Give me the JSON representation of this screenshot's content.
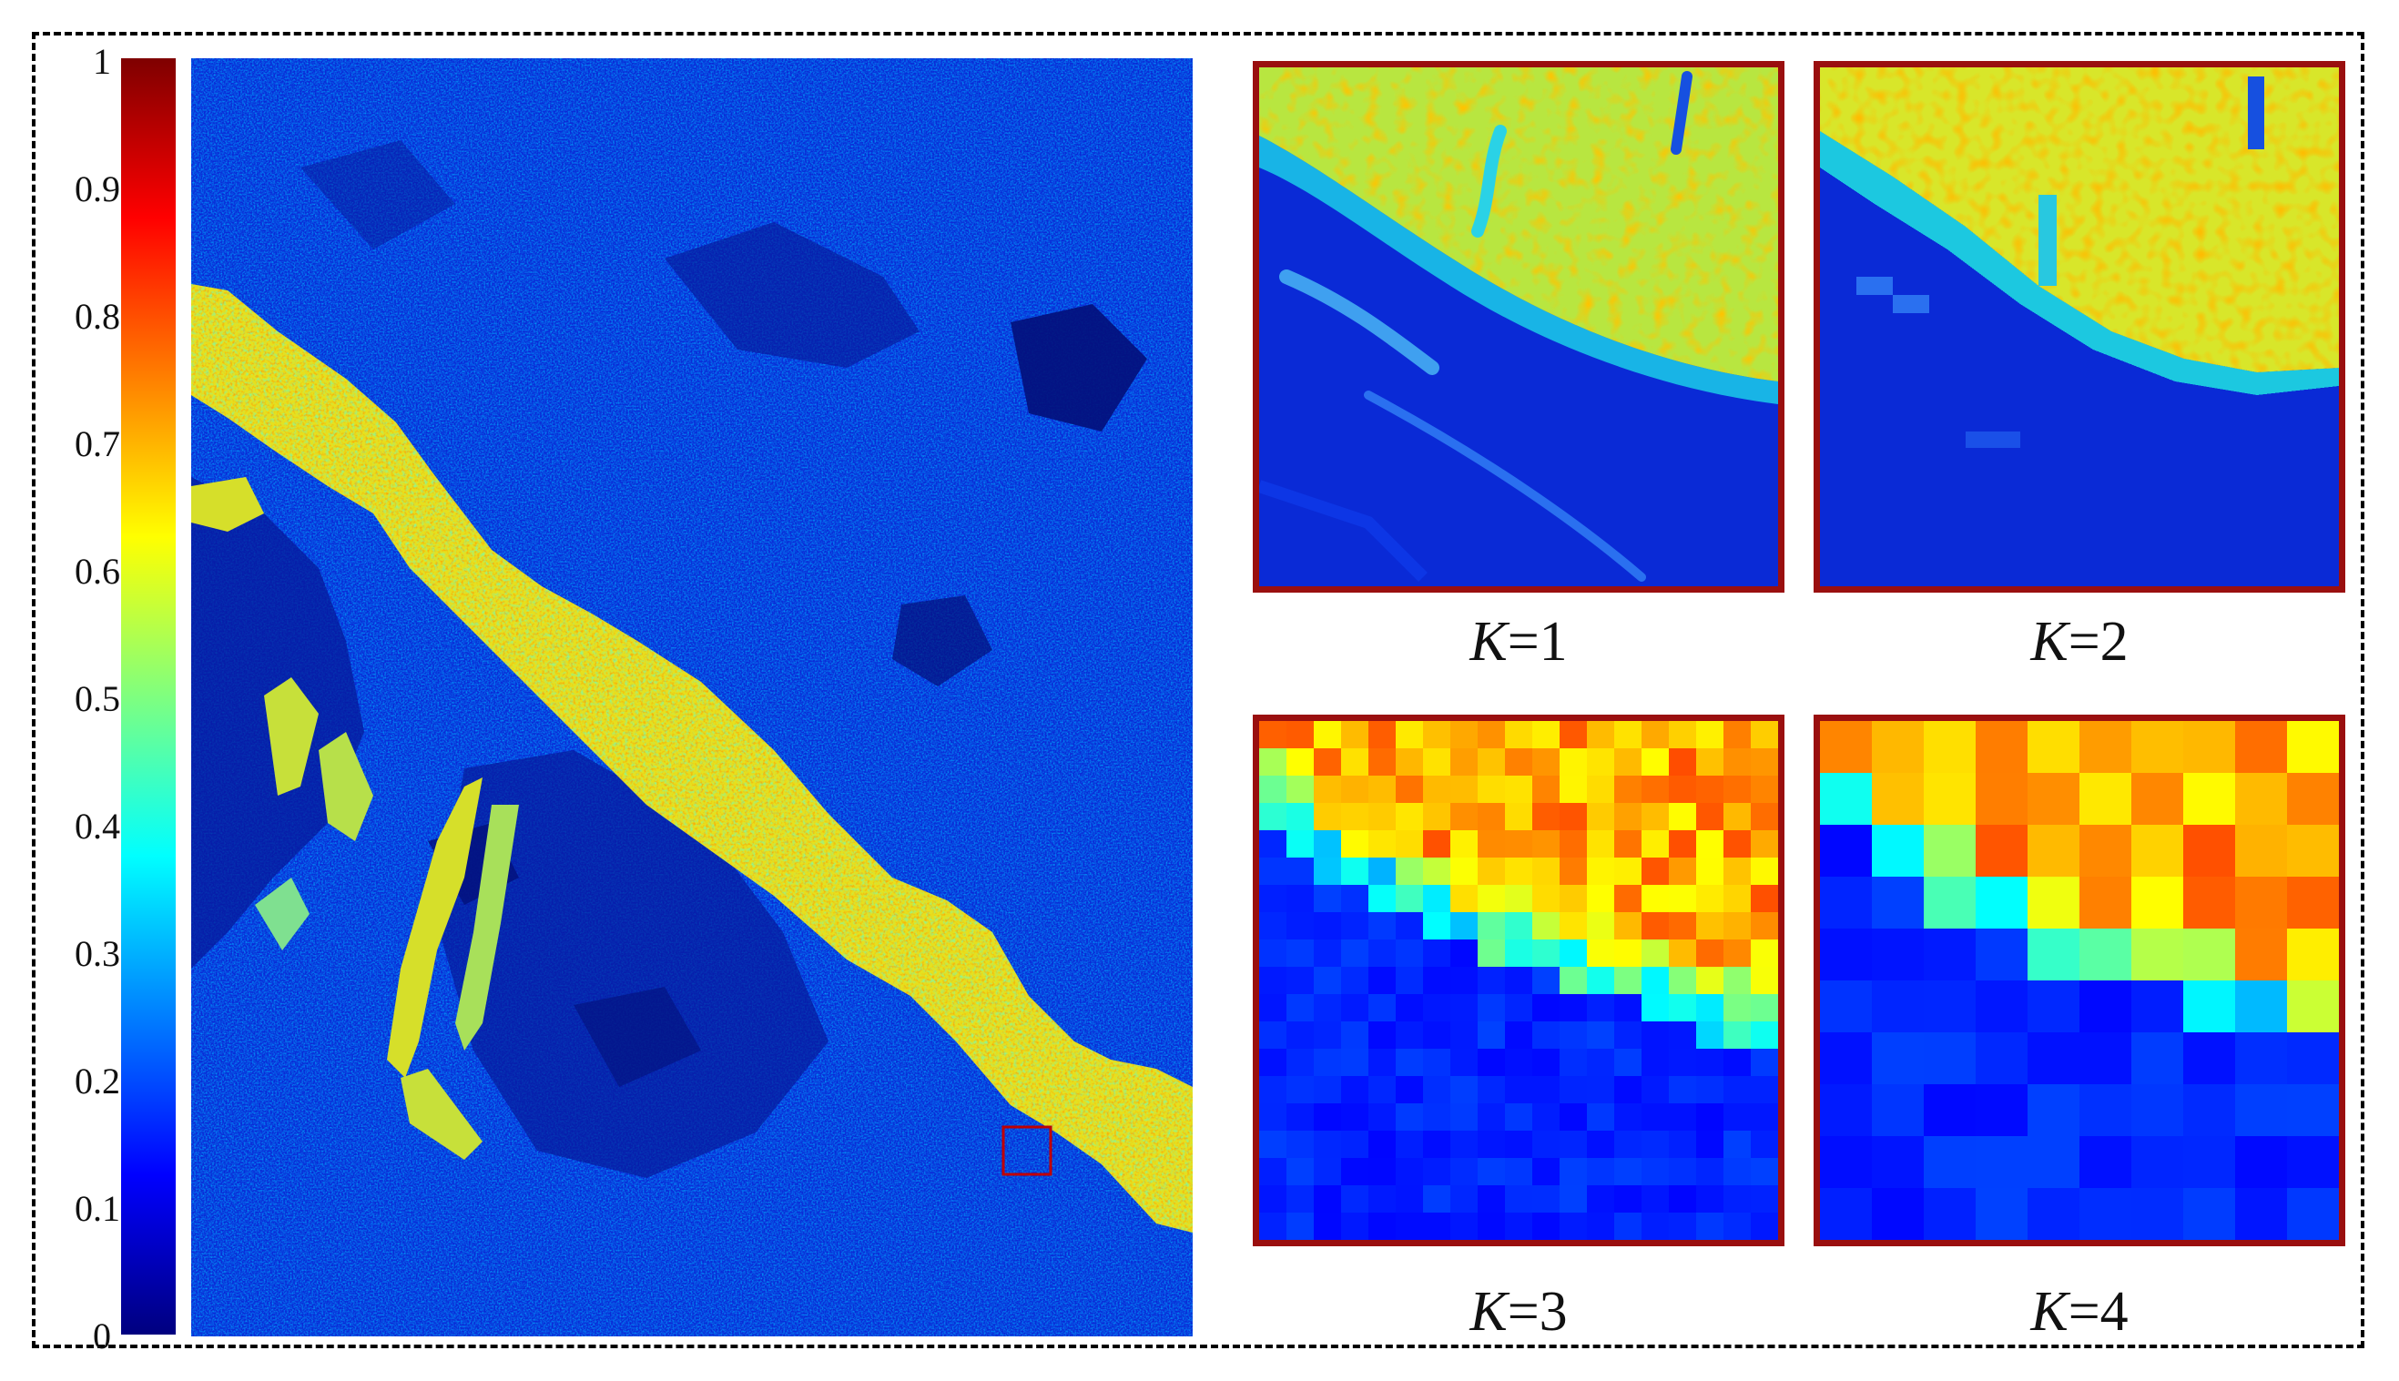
{
  "colorbar": {
    "ticks": [
      "1",
      "0.9",
      "0.8",
      "0.7",
      "0.6",
      "0.5",
      "0.4",
      "0.3",
      "0.2",
      "0.1",
      "0"
    ],
    "colors": [
      "#00007f",
      "#0000ff",
      "#007fff",
      "#00ffff",
      "#7fff7f",
      "#ffff00",
      "#ff7f00",
      "#ff0000",
      "#7f0000"
    ]
  },
  "zoom_box_color": "#c00000",
  "panels": [
    {
      "var": "K",
      "eq": "=1"
    },
    {
      "var": "K",
      "eq": "=2"
    },
    {
      "var": "K",
      "eq": "=3"
    },
    {
      "var": "K",
      "eq": "=4"
    }
  ]
}
